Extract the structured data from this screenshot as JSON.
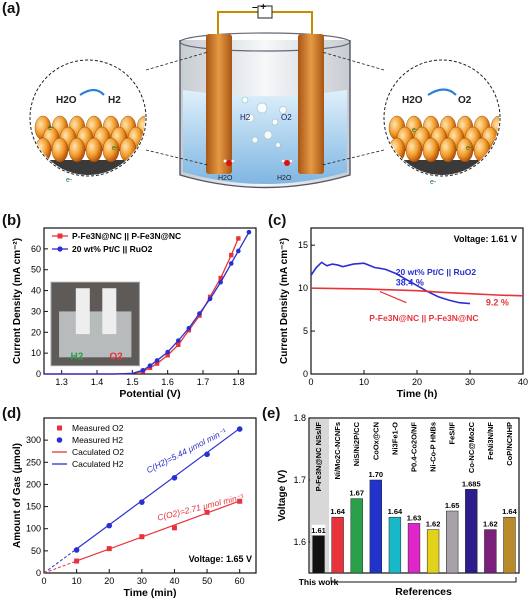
{
  "panels": {
    "a": "(a)",
    "b": "(b)",
    "c": "(c)",
    "d": "(d)",
    "e": "(e)"
  },
  "illustration": {
    "battery_sign": "– +",
    "left_zoom": {
      "reactant": "H2O",
      "product": "H2",
      "electron": "e-"
    },
    "right_zoom": {
      "reactant": "H2O",
      "product": "O2",
      "electron": "e-"
    },
    "beaker": {
      "h2_label": "H2",
      "o2_label": "O2",
      "h2o_left": "H2O",
      "h2o_right": "H2O"
    }
  },
  "colors": {
    "red": "#e8323c",
    "blue": "#2a2fd0",
    "electrode": "#d9822b",
    "bar_this_work": "#111111"
  },
  "chart_data": [
    {
      "id": "b",
      "type": "line",
      "xlabel": "Potential (V)",
      "ylabel": "Current Density (mA cm⁻²)",
      "xlim": [
        1.25,
        1.85
      ],
      "ylim": [
        0,
        70
      ],
      "xticks": [
        1.3,
        1.4,
        1.5,
        1.6,
        1.7,
        1.8
      ],
      "yticks": [
        0,
        10,
        20,
        30,
        40,
        50,
        60
      ],
      "legend": [
        "P-Fe3N@NC || P-Fe3N@NC",
        "20 wt% Pt/C || RuO2"
      ],
      "inset_labels": {
        "left": "H2",
        "right": "O2"
      },
      "series": [
        {
          "name": "P-Fe3N@NC || P-Fe3N@NC",
          "color": "#e8323c",
          "x": [
            1.25,
            1.35,
            1.45,
            1.5,
            1.53,
            1.55,
            1.57,
            1.6,
            1.63,
            1.66,
            1.69,
            1.72,
            1.75,
            1.78,
            1.8
          ],
          "y": [
            0,
            0,
            0,
            0.3,
            1.2,
            3.0,
            5.0,
            9.0,
            14.0,
            21.0,
            28.0,
            37.0,
            46.0,
            57.0,
            65.0
          ]
        },
        {
          "name": "20 wt% Pt/C || RuO2",
          "color": "#2a2fd0",
          "x": [
            1.25,
            1.35,
            1.45,
            1.5,
            1.53,
            1.55,
            1.57,
            1.6,
            1.63,
            1.66,
            1.69,
            1.72,
            1.75,
            1.78,
            1.8,
            1.83
          ],
          "y": [
            0,
            0,
            0,
            0.3,
            1.8,
            4.0,
            6.5,
            10.5,
            16.0,
            22.0,
            29.0,
            36.0,
            44.0,
            53.0,
            59.0,
            68.0
          ]
        }
      ]
    },
    {
      "id": "c",
      "type": "line",
      "xlabel": "Time (h)",
      "ylabel": "Current Density (mA cm⁻²)",
      "xlim": [
        0,
        40
      ],
      "ylim": [
        0,
        17
      ],
      "xticks": [
        0,
        10,
        20,
        30,
        40
      ],
      "yticks": [
        0,
        5,
        10,
        15
      ],
      "annotation": "Voltage: 1.61 V",
      "series": [
        {
          "name": "20 wt% Pt/C || RuO2",
          "color": "#2a2fd0",
          "retention": "38.4 %",
          "x": [
            0,
            1,
            2,
            3,
            4,
            5,
            6,
            8,
            10,
            12,
            14,
            16,
            18,
            20,
            22,
            24,
            26,
            28,
            30
          ],
          "y": [
            11.5,
            12.4,
            13.0,
            12.6,
            12.8,
            12.7,
            12.5,
            12.8,
            12.9,
            12.4,
            12.2,
            11.7,
            11.0,
            10.3,
            9.6,
            9.0,
            8.6,
            8.3,
            8.2
          ]
        },
        {
          "name": "P-Fe3N@NC || P-Fe3N@NC",
          "color": "#e8323c",
          "retention": "9.2 %",
          "x": [
            0,
            5,
            10,
            15,
            20,
            25,
            30,
            35,
            40
          ],
          "y": [
            10.0,
            9.95,
            9.9,
            9.8,
            9.7,
            9.5,
            9.35,
            9.2,
            9.1
          ]
        }
      ]
    },
    {
      "id": "d",
      "type": "scatter",
      "xlabel": "Time (min)",
      "ylabel": "Amount of Gas (μmol)",
      "xlim": [
        0,
        65
      ],
      "ylim": [
        0,
        350
      ],
      "xticks": [
        0,
        10,
        20,
        30,
        40,
        50,
        60
      ],
      "yticks": [
        0,
        50,
        100,
        150,
        200,
        250,
        300
      ],
      "annotation": "Voltage: 1.65 V",
      "legend": [
        "Measured O2",
        "Measured H2",
        "Caculated O2",
        "Caculated H2"
      ],
      "rate_labels": {
        "h2": "C(H2)=5.44 μmol min⁻¹",
        "o2": "C(O2)=2.71 μmol min⁻¹"
      },
      "series": [
        {
          "name": "Measured O2",
          "color": "#e8323c",
          "marker": "square",
          "x": [
            10,
            20,
            30,
            40,
            50,
            60
          ],
          "y": [
            27,
            55,
            82,
            102,
            137,
            162
          ]
        },
        {
          "name": "Measured H2",
          "color": "#2a2fd0",
          "marker": "circle",
          "x": [
            10,
            20,
            30,
            40,
            50,
            60
          ],
          "y": [
            52,
            107,
            160,
            215,
            268,
            325
          ]
        },
        {
          "name": "Caculated O2",
          "color": "#e8323c",
          "slope": 2.71
        },
        {
          "name": "Caculated H2",
          "color": "#2a2fd0",
          "slope": 5.44
        }
      ]
    },
    {
      "id": "e",
      "type": "bar",
      "ylabel": "Voltage (V)",
      "xlabel": "References",
      "this_work_label": "This work",
      "ylim": [
        1.55,
        1.8
      ],
      "yticks": [
        1.6,
        1.7,
        1.8
      ],
      "categories": [
        "P-Fe3N@NC NSs/IF",
        "Ni/Mo2C-NCNFs",
        "NiS/Ni2P/CC",
        "CoOx@CN",
        "Ni3Fe1-O",
        "P0.4-Co2O/NF",
        "Ni-Co-P HNBs",
        "FeS/IF",
        "Co-NC@Mo2C",
        "FeNi3N/NF",
        "CoP/NCNHP"
      ],
      "values": [
        1.61,
        1.64,
        1.67,
        1.7,
        1.64,
        1.63,
        1.62,
        1.65,
        1.685,
        1.62,
        1.64
      ],
      "value_labels": [
        "1.61",
        "1.64",
        "1.67",
        "1.70",
        "1.64",
        "1.63",
        "1.62",
        "1.65",
        "1.685",
        "1.62",
        "1.64"
      ],
      "bar_colors": [
        "#111111",
        "#e8323c",
        "#2aa04a",
        "#2233cc",
        "#19b8c9",
        "#e026c9",
        "#e3d21a",
        "#a6a2a8",
        "#2b1d8c",
        "#7a1f7a",
        "#b98a2a"
      ]
    }
  ]
}
